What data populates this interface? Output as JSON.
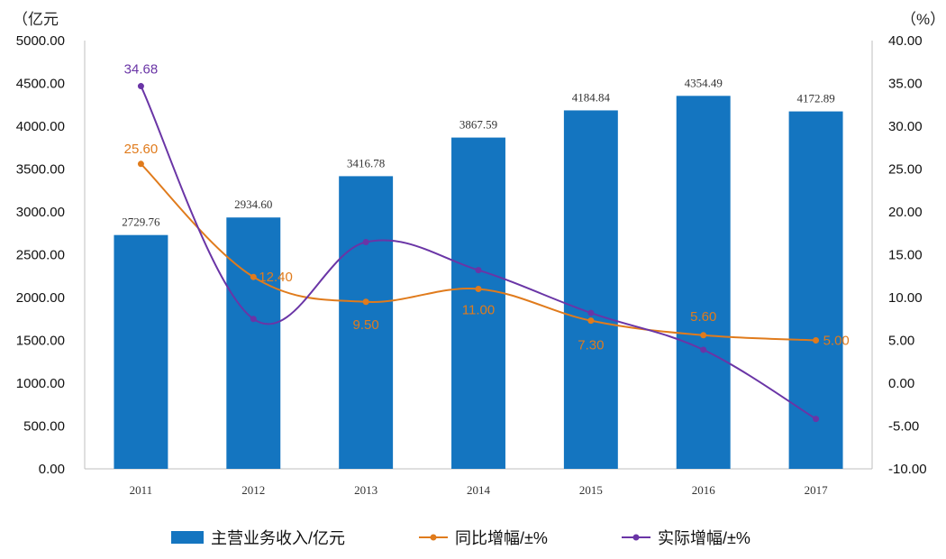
{
  "chart_data": {
    "type": "bar",
    "title": "",
    "categories": [
      "2011",
      "2012",
      "2013",
      "2014",
      "2015",
      "2016",
      "2017"
    ],
    "left_axis": {
      "unit_label": "（亿元",
      "min": 0,
      "max": 5000,
      "step": 500,
      "tick_labels": [
        "0.00",
        "500.00",
        "1000.00",
        "1500.00",
        "2000.00",
        "2500.00",
        "3000.00",
        "3500.00",
        "4000.00",
        "4500.00",
        "5000.00"
      ]
    },
    "right_axis": {
      "unit_label": "（%）",
      "min": -10,
      "max": 40,
      "step": 5,
      "tick_labels": [
        "-10.00",
        "-5.00",
        "0.00",
        "5.00",
        "10.00",
        "15.00",
        "20.00",
        "25.00",
        "30.00",
        "35.00",
        "40.00"
      ]
    },
    "series": [
      {
        "name": "主营业务收入/亿元",
        "kind": "bar",
        "axis": "left",
        "color": "#1475c0",
        "values": [
          2729.76,
          2934.6,
          3416.78,
          3867.59,
          4184.84,
          4354.49,
          4172.89
        ],
        "labels": [
          "2729.76",
          "2934.60",
          "3416.78",
          "3867.59",
          "4184.84",
          "4354.49",
          "4172.89"
        ]
      },
      {
        "name": "同比增幅/±%",
        "kind": "line",
        "axis": "right",
        "color": "#e07b1c",
        "values": [
          25.6,
          12.4,
          9.5,
          11.0,
          7.3,
          5.6,
          5.0
        ],
        "labels": [
          "25.60",
          "12.40",
          "9.50",
          "11.00",
          "7.30",
          "5.60",
          "5.00"
        ]
      },
      {
        "name": "实际增幅/±%",
        "kind": "line",
        "axis": "right",
        "color": "#6a35a6",
        "values": [
          34.68,
          7.5,
          16.47,
          13.2,
          8.2,
          3.9,
          -4.17
        ],
        "labels": [
          "34.68",
          "",
          "",
          "",
          "",
          "",
          ""
        ]
      }
    ],
    "legend": {
      "position": "bottom",
      "items": [
        "主营业务收入/亿元",
        "同比增幅/±%",
        "实际增幅/±%"
      ]
    },
    "grid": false
  }
}
